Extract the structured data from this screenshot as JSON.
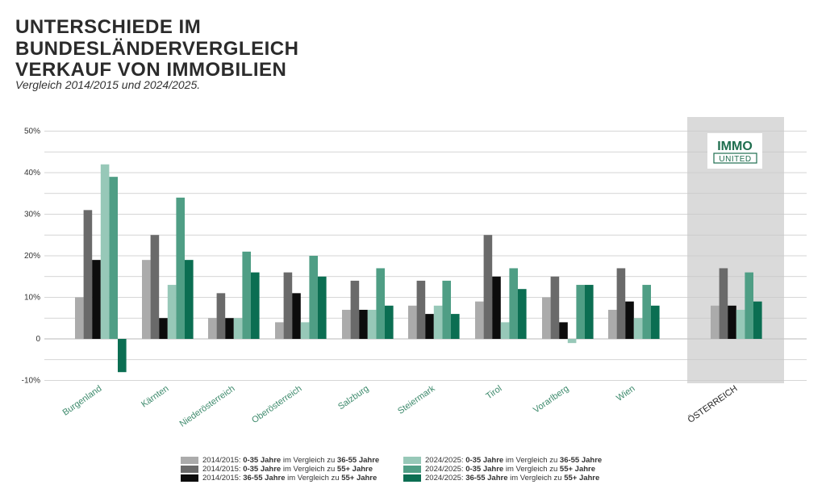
{
  "title_lines": [
    "UNTERSCHIEDE IM",
    "BUNDESLÄNDERVERGLEICH",
    "VERKAUF VON IMMOBILIEN"
  ],
  "subtitle": "Vergleich 2014/2015 und 2024/2025.",
  "logo": {
    "line1": "IMMO",
    "line2": "UNITED"
  },
  "colors": {
    "s1": "#ababab",
    "s2": "#6a6a6a",
    "s3": "#0c0c0c",
    "s4": "#97c8b8",
    "s5": "#4f9e85",
    "s6": "#0b6e52",
    "category_label": "#3d8a6c",
    "highlight_label": "#222222",
    "highlight_bg": "#dadada",
    "grid": "#c8c8c8",
    "logo_green": "#1f6e4f"
  },
  "chart_data": {
    "type": "bar",
    "ylim": [
      -10,
      50
    ],
    "yticks": [
      -10,
      0,
      10,
      20,
      30,
      40,
      50
    ],
    "ytick_labels": [
      "-10%",
      "0",
      "10%",
      "20%",
      "30%",
      "40%",
      "50%"
    ],
    "categories": [
      "Burgenland",
      "Kärnten",
      "Niederösterreich",
      "Oberösterreich",
      "Salzburg",
      "Steiermark",
      "Tirol",
      "Vorarlberg",
      "Wien",
      "ÖSTERREICH"
    ],
    "highlight_category": "ÖSTERREICH",
    "series": [
      {
        "name": "2014/2015: 0-35 Jahre im Vergleich zu 36-55 Jahre",
        "values": [
          10,
          19,
          5,
          4,
          7,
          8,
          9,
          10,
          7,
          8
        ]
      },
      {
        "name": "2014/2015: 0-35 Jahre im Vergleich zu 55+ Jahre",
        "values": [
          31,
          25,
          11,
          16,
          14,
          14,
          25,
          15,
          17,
          17
        ]
      },
      {
        "name": "2014/2015: 36-55 Jahre im Vergleich zu 55+ Jahre",
        "values": [
          19,
          5,
          5,
          11,
          7,
          6,
          15,
          4,
          9,
          8
        ]
      },
      {
        "name": "2024/2025: 0-35 Jahre im Vergleich zu 36-55 Jahre",
        "values": [
          42,
          13,
          5,
          4,
          7,
          8,
          4,
          -1,
          5,
          7
        ]
      },
      {
        "name": "2024/2025: 0-35 Jahre im Vergleich zu 55+ Jahre",
        "values": [
          39,
          34,
          21,
          20,
          17,
          14,
          17,
          13,
          13,
          16
        ]
      },
      {
        "name": "2024/2025: 36-55 Jahre im Vergleich zu 55+ Jahre",
        "values": [
          -8,
          19,
          16,
          15,
          8,
          6,
          12,
          13,
          8,
          9
        ]
      }
    ]
  },
  "legend": [
    {
      "prefix": "2014/2015: ",
      "a": "0-35 Jahre",
      "mid": " im Vergleich zu ",
      "b": "36-55 Jahre"
    },
    {
      "prefix": "2014/2015: ",
      "a": "0-35 Jahre",
      "mid": " im Vergleich zu ",
      "b": "55+ Jahre"
    },
    {
      "prefix": "2014/2015: ",
      "a": "36-55 Jahre",
      "mid": " im Vergleich zu ",
      "b": "55+ Jahre"
    },
    {
      "prefix": "2024/2025: ",
      "a": "0-35 Jahre",
      "mid": " im Vergleich zu ",
      "b": "36-55 Jahre"
    },
    {
      "prefix": "2024/2025: ",
      "a": "0-35 Jahre",
      "mid": " im Vergleich zu ",
      "b": "55+ Jahre"
    },
    {
      "prefix": "2024/2025: ",
      "a": "36-55 Jahre",
      "mid": " im Vergleich zu ",
      "b": "55+ Jahre"
    }
  ]
}
